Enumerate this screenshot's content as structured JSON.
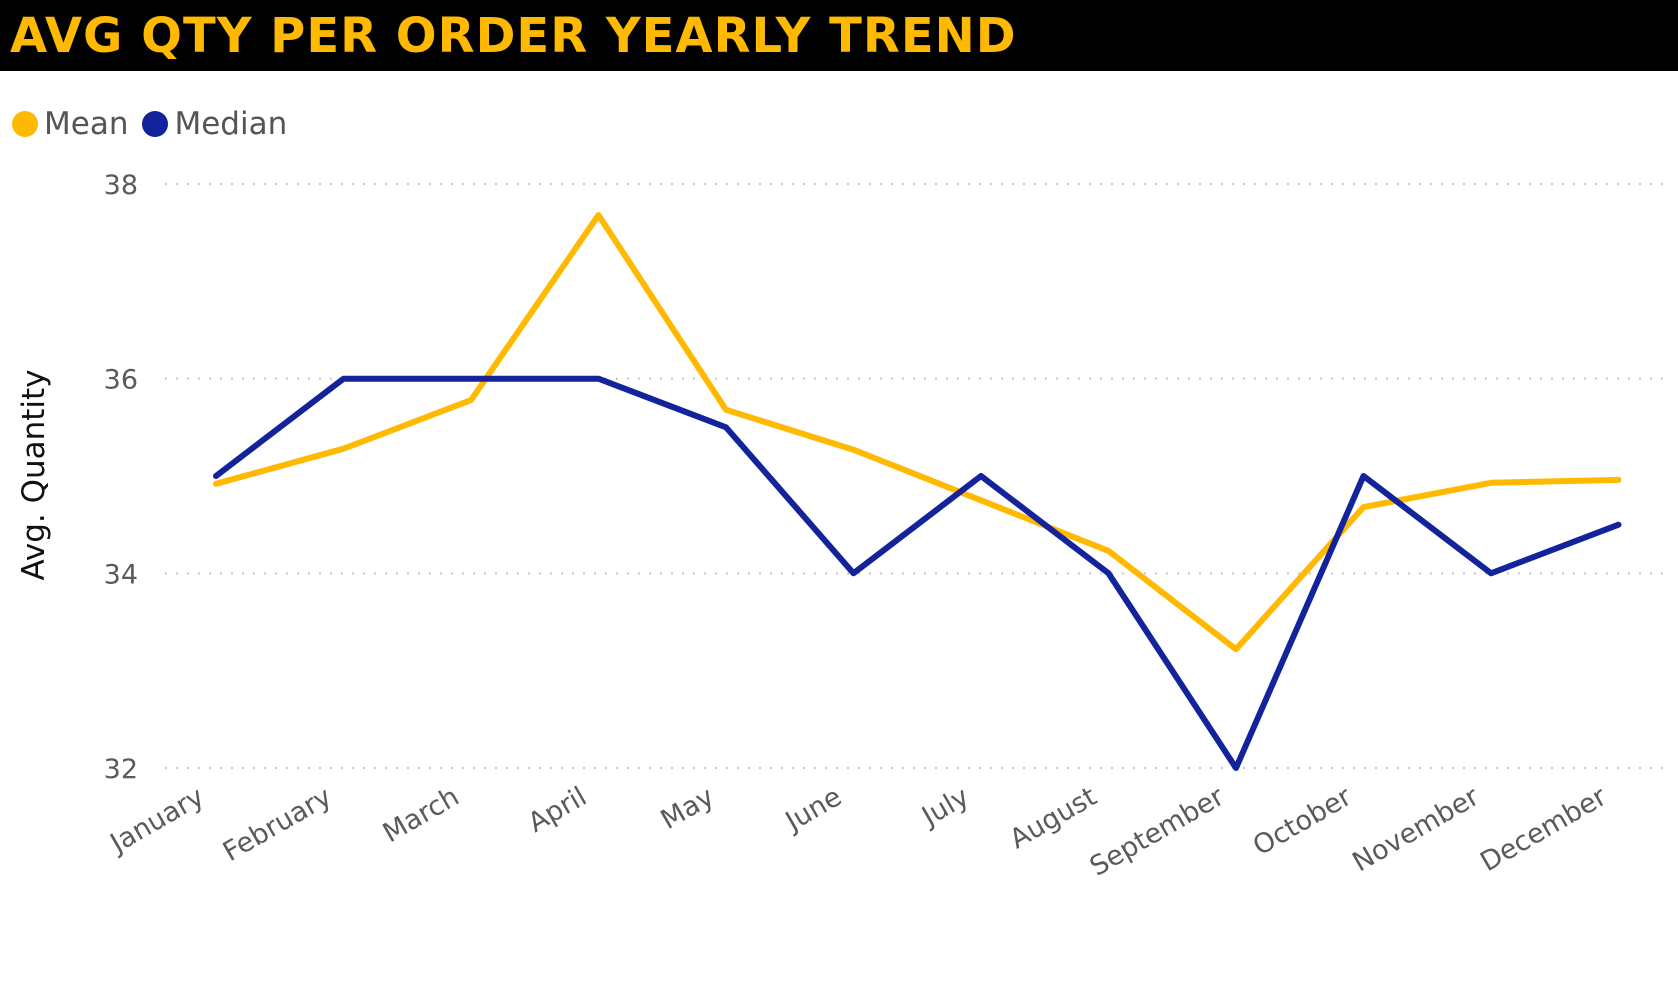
{
  "chart_data": {
    "type": "line",
    "title": "AVG QTY PER ORDER YEARLY TREND",
    "xlabel": "",
    "ylabel": "Avg. Quantity",
    "categories": [
      "January",
      "February",
      "March",
      "April",
      "May",
      "June",
      "July",
      "August",
      "September",
      "October",
      "November",
      "December"
    ],
    "yticks": [
      32,
      34,
      36,
      38
    ],
    "ylim": [
      32,
      38
    ],
    "grid": true,
    "legend_position": "top-left",
    "series": [
      {
        "name": "Mean",
        "color": "#FFB900",
        "values": [
          34.92,
          35.28,
          35.78,
          37.68,
          35.68,
          35.27,
          34.75,
          34.23,
          33.22,
          34.68,
          34.93,
          34.96
        ]
      },
      {
        "name": "Median",
        "color": "#13239B",
        "values": [
          35,
          36,
          36,
          36,
          35.5,
          34,
          35,
          34,
          32,
          35,
          34,
          34.5
        ]
      }
    ]
  },
  "colors": {
    "title_bar": "#000000",
    "title_text": "#FFB900",
    "grid": "#c8c8c8"
  }
}
